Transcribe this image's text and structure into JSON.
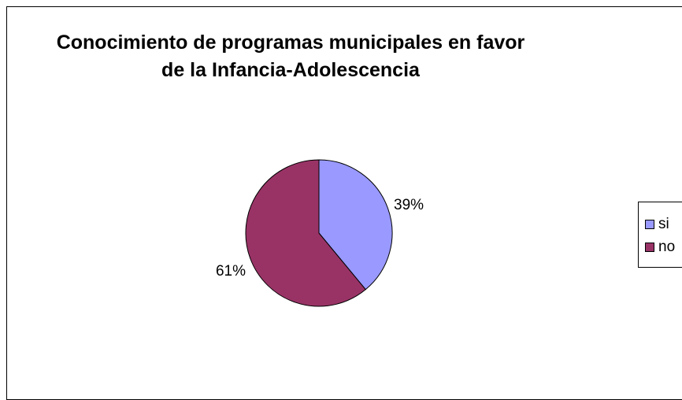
{
  "chart_data": {
    "type": "pie",
    "title": "Conocimiento de programas municipales en favor de la Infancia-Adolescencia",
    "title_lines": [
      "Conocimiento de programas municipales en favor",
      "de la Infancia-Adolescencia"
    ],
    "categories": [
      "si",
      "no"
    ],
    "values": [
      39,
      61
    ],
    "data_labels": [
      "39%",
      "61%"
    ],
    "colors": [
      "#9999FF",
      "#993366"
    ],
    "legend": "right"
  }
}
